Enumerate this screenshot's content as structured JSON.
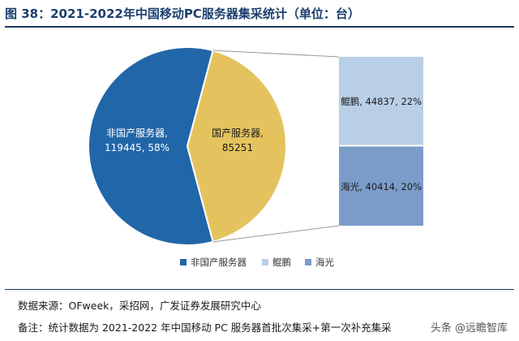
{
  "title": "图 38：2021-2022年中国移动PC服务器集采统计（单位：台）",
  "chart_data": {
    "type": "pie",
    "title": "图 38：2021-2022年中国移动PC服务器集采统计（单位：台）",
    "unit": "台",
    "slices": [
      {
        "name": "非国产服务器",
        "value": 119445,
        "label_line1": "非国产服务器,",
        "label_line2": "119445, 58%",
        "color": "#2166a8"
      },
      {
        "name": "国产服务器",
        "value": 85251,
        "label_line1": "国产服务器,",
        "label_line2": "85251",
        "color": "#e4c35e"
      }
    ],
    "breakdown": [
      {
        "name": "鲲鹏",
        "value": 44837,
        "percent": "22%",
        "label": "鲲鹏, 44837, 22%",
        "color": "#b9cfe7"
      },
      {
        "name": "海光",
        "value": 40414,
        "percent": "20%",
        "label": "海光, 40414, 20%",
        "color": "#7b9cc9"
      }
    ],
    "legend": [
      {
        "name": "非国产服务器",
        "color": "#2166a8"
      },
      {
        "name": "鲲鹏",
        "color": "#b9cfe7"
      },
      {
        "name": "海光",
        "color": "#7b9cc9"
      }
    ],
    "legend_position": "bottom"
  },
  "source": "数据来源：OFweek，采招网，广发证券发展研究中心",
  "remark": "备注：统计数据为 2021-2022 年中国移动 PC 服务器首批次集采+第一次补充集采",
  "watermark": "头条 @远瞻智库"
}
